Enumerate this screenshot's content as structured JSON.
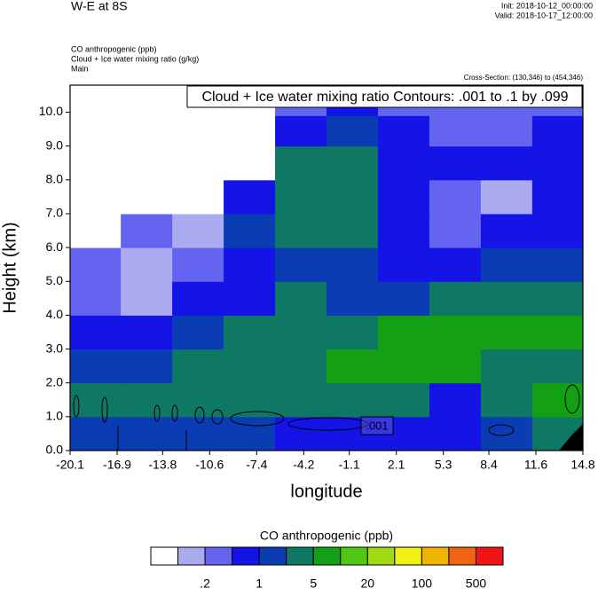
{
  "header": {
    "title": "W-E at 8S",
    "init": "Init: 2018-10-12_00:00:00",
    "valid": "Valid: 2018-10-17_12:00:00",
    "fields": [
      "CO anthropogenic   (ppb)",
      "Cloud + Ice water mixing ratio   (g/kg)"
    ],
    "run": "Main",
    "cross_section": "Cross-Section: (130,346) to (454,346)"
  },
  "chart_data": {
    "type": "contour",
    "legend_box": "Cloud + Ice water mixing ratio Contours: .001 to .1 by .099",
    "xlabel": "longitude",
    "ylabel": "Height (km)",
    "xlim": [
      -20.1,
      14.8
    ],
    "xticks": [
      -20.1,
      -16.9,
      -13.8,
      -10.6,
      -7.4,
      -4.2,
      -1.1,
      2.1,
      5.3,
      8.4,
      11.6,
      14.8
    ],
    "ylim": [
      0,
      10.8
    ],
    "yticks": [
      {
        "value": 0,
        "label": "0.0"
      },
      {
        "value": 1,
        "label": "1.0"
      },
      {
        "value": 2,
        "label": "2.0"
      },
      {
        "value": 3,
        "label": "3.0"
      },
      {
        "value": 4,
        "label": "4.0"
      },
      {
        "value": 5,
        "label": "5.0"
      },
      {
        "value": 6,
        "label": "6.0"
      },
      {
        "value": 7,
        "label": "7.0"
      },
      {
        "value": 8,
        "label": "8.0"
      },
      {
        "value": 9,
        "label": "9.0"
      },
      {
        "value": 10,
        "label": "10.0"
      }
    ],
    "x": [
      -18.4,
      -14.9,
      -11.4,
      -7.9,
      -4.4,
      -0.9,
      2.6,
      6.1,
      9.6,
      13.1
    ],
    "y": [
      0.5,
      1.5,
      2.5,
      3.5,
      4.5,
      5.5,
      6.5,
      7.5,
      8.5,
      9.5,
      10.3
    ],
    "z": [
      [
        1.5,
        1.5,
        1.5,
        1.5,
        0.7,
        0.7,
        0.7,
        0.7,
        1.5,
        3.3
      ],
      [
        3.3,
        3.3,
        3.3,
        3.3,
        3.3,
        3.3,
        3.3,
        0.7,
        3.3,
        7
      ],
      [
        1.5,
        1.5,
        3.3,
        3.3,
        3.3,
        7,
        7,
        7,
        3.3,
        3.3
      ],
      [
        0.7,
        0.7,
        1.5,
        3.3,
        3.3,
        3.3,
        7,
        7,
        7,
        7
      ],
      [
        0.3,
        0.13,
        0.7,
        0.7,
        3.3,
        1.5,
        1.5,
        3.3,
        3.3,
        3.3
      ],
      [
        0.3,
        0.13,
        0.3,
        0.7,
        1.5,
        1.5,
        0.7,
        0.7,
        1.5,
        1.5
      ],
      [
        0.06,
        0.3,
        0.13,
        1.5,
        3.3,
        3.3,
        0.7,
        0.3,
        0.7,
        0.7
      ],
      [
        0.06,
        0.06,
        0.06,
        0.7,
        3.3,
        3.3,
        0.7,
        0.3,
        0.13,
        0.7
      ],
      [
        0.06,
        0.06,
        0.06,
        0.06,
        3.3,
        3.3,
        0.7,
        0.7,
        0.7,
        0.7
      ],
      [
        0.06,
        0.06,
        0.06,
        0.06,
        0.7,
        1.5,
        0.7,
        0.3,
        0.3,
        0.7
      ],
      [
        0.06,
        0.06,
        0.06,
        0.06,
        0.3,
        0.7,
        0.3,
        0.3,
        0.3,
        0.3
      ]
    ],
    "contour_label": ".001",
    "colorbar": {
      "title": "CO anthropogenic  (ppb)",
      "colors": [
        "#ffffff",
        "#aaaaf0",
        "#6464f0",
        "#1414e6",
        "#0a3cb4",
        "#0f7864",
        "#14a014",
        "#50c814",
        "#a0dc14",
        "#f0f014",
        "#f0b400",
        "#f06414",
        "#f01414"
      ],
      "levels": [
        {
          "value": 0.2,
          "label": ".2"
        },
        1,
        5,
        20,
        100,
        500
      ]
    }
  }
}
